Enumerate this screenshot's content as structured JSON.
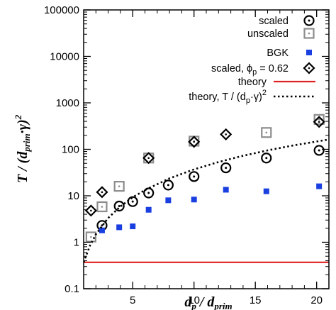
{
  "chart_data": {
    "type": "scatter",
    "xlabel": "d_p / d_prim",
    "ylabel": "T / (d_prim·γ)^2",
    "xscale": "linear",
    "yscale": "log",
    "xlim": [
      1,
      21
    ],
    "ylim": [
      0.1,
      100000
    ],
    "x_ticks": [
      "5",
      "10",
      "15",
      "20"
    ],
    "y_ticks": [
      "0.1",
      "1",
      "10",
      "100",
      "1000",
      "10000",
      "100000"
    ],
    "legend_position": "top-right",
    "series": [
      {
        "name": "scaled",
        "marker": "circle-dot",
        "color": "#000000",
        "x": [
          2.5,
          3.9,
          5.0,
          6.3,
          7.9,
          10.0,
          12.6,
          15.9,
          20.2
        ],
        "y": [
          2.3,
          6.0,
          7.5,
          11.5,
          17,
          26,
          40,
          65,
          95
        ]
      },
      {
        "name": "unscaled",
        "marker": "square-dot",
        "color": "#8c8c8c",
        "x": [
          1.6,
          2.5,
          3.9,
          6.3,
          10.0,
          15.9,
          20.2
        ],
        "y": [
          1.3,
          5.8,
          16,
          65,
          150,
          230,
          440
        ]
      },
      {
        "name": "BGK",
        "marker": "filled-square",
        "color": "#1a3fe0",
        "x": [
          2.5,
          3.9,
          5.0,
          6.3,
          7.9,
          10.0,
          12.6,
          15.9,
          20.2
        ],
        "y": [
          1.8,
          2.1,
          2.2,
          5.0,
          8.0,
          8.3,
          13.5,
          12.5,
          16
        ]
      },
      {
        "name": "scaled, φp = 0.62",
        "marker": "diamond-dot",
        "color": "#000000",
        "x": [
          1.6,
          2.5,
          6.3,
          10.0,
          12.6,
          20.2
        ],
        "y": [
          4.8,
          12,
          65,
          145,
          210,
          390
        ]
      },
      {
        "name": "theory",
        "line": "solid",
        "color": "#e02020",
        "x": [
          1,
          21
        ],
        "y": [
          0.37,
          0.37
        ]
      },
      {
        "name": "theory, T / (dp·γ)^2",
        "line": "dotted",
        "color": "#000000",
        "x": [
          1.0,
          1.5,
          2,
          3,
          4,
          5,
          6,
          8,
          10,
          12,
          14,
          16,
          18,
          21
        ],
        "y": [
          0.37,
          0.83,
          1.48,
          3.33,
          5.9,
          9.25,
          13.3,
          23.7,
          37,
          53.3,
          72.5,
          94.7,
          120,
          163
        ]
      }
    ]
  },
  "legend": {
    "scaled": "scaled",
    "unscaled": "unscaled",
    "bgk": "BGK",
    "scaled_phi_main": "scaled, ϕ",
    "scaled_phi_sub": "p",
    "scaled_phi_tail": " = 0.62",
    "theory": "theory",
    "theory2_main": "theory, T / (d",
    "theory2_sub": "p",
    "theory2_mid": "·γ)",
    "theory2_sup": "2"
  },
  "axes": {
    "x_title_main": "d",
    "x_title_sub1": "p",
    "x_title_sep": " / d",
    "x_title_sub2": "prim",
    "y_title_main": "T / (d",
    "y_title_sub": "prim",
    "y_title_mid": "·γ)",
    "y_title_sup": "2"
  }
}
